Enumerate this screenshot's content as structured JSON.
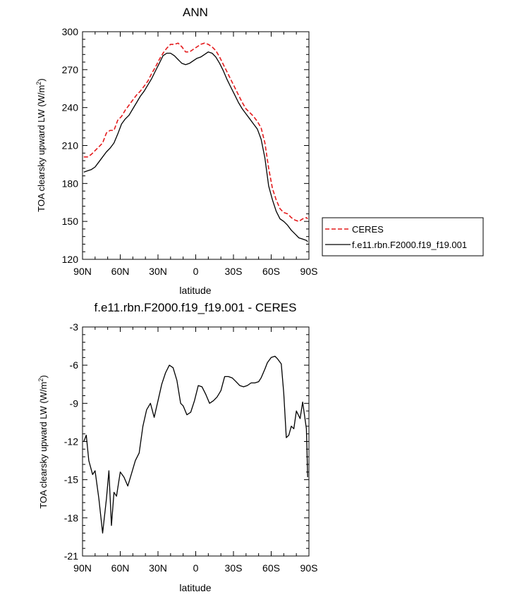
{
  "chart_data": [
    {
      "type": "line",
      "title": "ANN",
      "xlabel": "latitude",
      "ylabel": "TOA clearsky upward LW (W/m",
      "ylabel_sup": "2",
      "ylabel_end": ")",
      "xlim": [
        90,
        -90
      ],
      "ylim": [
        120,
        300
      ],
      "xticks": [
        90,
        60,
        30,
        0,
        -30,
        -60,
        -90
      ],
      "xticklabels": [
        "90N",
        "60N",
        "30N",
        "0",
        "30S",
        "60S",
        "90S"
      ],
      "yticks": [
        120,
        150,
        180,
        210,
        240,
        270,
        300
      ],
      "yticklabels": [
        "120",
        "150",
        "180",
        "210",
        "240",
        "270",
        "300"
      ],
      "legend_position": "right",
      "series": [
        {
          "name": "CERES",
          "color": "#e41a1c",
          "dash": "dashed",
          "x": [
            89,
            86,
            83,
            80,
            77,
            74,
            71,
            68,
            65,
            62,
            59,
            56,
            53,
            50,
            47,
            44,
            41,
            38,
            35,
            32,
            29,
            26,
            23,
            20,
            17,
            14,
            11,
            8,
            5,
            2,
            -1,
            -4,
            -7,
            -10,
            -13,
            -16,
            -19,
            -22,
            -25,
            -28,
            -31,
            -34,
            -37,
            -40,
            -43,
            -46,
            -49,
            -52,
            -55,
            -58,
            -61,
            -64,
            -67,
            -70,
            -73,
            -76,
            -79,
            -82,
            -85,
            -88,
            -89
          ],
          "y": [
            201,
            201,
            203,
            206,
            209,
            212,
            220,
            222,
            222,
            230,
            233,
            238,
            242,
            246,
            250,
            253,
            257,
            261,
            267,
            272,
            278,
            283,
            287,
            290,
            290,
            291,
            288,
            284,
            284,
            286,
            288,
            290,
            291,
            290,
            288,
            285,
            280,
            274,
            268,
            262,
            256,
            250,
            244,
            239,
            236,
            233,
            229,
            224,
            212,
            192,
            176,
            167,
            160,
            157,
            156,
            153,
            151,
            150,
            152,
            153,
            152
          ]
        },
        {
          "name": "f.e11.rbn.F2000.f19_f19.001",
          "color": "#000000",
          "dash": "solid",
          "x": [
            89,
            86,
            83,
            80,
            77,
            74,
            71,
            68,
            65,
            62,
            59,
            56,
            53,
            50,
            47,
            44,
            41,
            38,
            35,
            32,
            29,
            26,
            23,
            20,
            17,
            14,
            11,
            8,
            5,
            2,
            -1,
            -4,
            -7,
            -10,
            -13,
            -16,
            -19,
            -22,
            -25,
            -28,
            -31,
            -34,
            -37,
            -40,
            -43,
            -46,
            -49,
            -52,
            -55,
            -58,
            -61,
            -64,
            -67,
            -70,
            -73,
            -76,
            -79,
            -82,
            -85,
            -88,
            -89
          ],
          "y": [
            189,
            190,
            191,
            193,
            197,
            201,
            205,
            208,
            212,
            219,
            227,
            231,
            234,
            239,
            244,
            249,
            253,
            258,
            263,
            269,
            275,
            281,
            283,
            283,
            281,
            278,
            275,
            274,
            275,
            277,
            279,
            280,
            282,
            284,
            283,
            280,
            275,
            269,
            262,
            256,
            250,
            244,
            239,
            235,
            231,
            227,
            223,
            215,
            200,
            178,
            167,
            158,
            152,
            150,
            147,
            143,
            140,
            137,
            136,
            135,
            134
          ]
        }
      ]
    },
    {
      "type": "line",
      "title": "f.e11.rbn.F2000.f19_f19.001 - CERES",
      "xlabel": "latitude",
      "ylabel": "TOA clearsky upward LW (W/m",
      "ylabel_sup": "2",
      "ylabel_end": ")",
      "xlim": [
        90,
        -90
      ],
      "ylim": [
        -21,
        -3
      ],
      "xticks": [
        90,
        60,
        30,
        0,
        -30,
        -60,
        -90
      ],
      "xticklabels": [
        "90N",
        "60N",
        "30N",
        "0",
        "30S",
        "60S",
        "90S"
      ],
      "yticks": [
        -21,
        -18,
        -15,
        -12,
        -9,
        -6,
        -3
      ],
      "yticklabels": [
        "-21",
        "-18",
        "-15",
        "-12",
        "-9",
        "-6",
        "-3"
      ],
      "series": [
        {
          "name": "",
          "color": "#000000",
          "dash": "solid",
          "x": [
            89,
            87,
            85,
            82,
            80,
            77,
            74,
            71,
            69,
            67,
            65,
            63,
            60,
            57,
            54,
            51,
            48,
            45,
            42,
            39,
            36,
            33,
            30,
            27,
            24,
            21,
            18,
            15,
            12,
            10,
            7,
            4,
            1,
            -2,
            -5,
            -8,
            -11,
            -14,
            -17,
            -20,
            -23,
            -26,
            -29,
            -32,
            -35,
            -38,
            -41,
            -44,
            -47,
            -50,
            -52,
            -55,
            -57,
            -60,
            -63,
            -65,
            -68,
            -70,
            -72,
            -74,
            -76,
            -78,
            -80,
            -83,
            -85,
            -88,
            -89
          ],
          "y": [
            -12.0,
            -11.5,
            -13.5,
            -14.6,
            -14.3,
            -16.5,
            -19.2,
            -16.5,
            -14.3,
            -18.6,
            -16.0,
            -16.3,
            -14.4,
            -14.8,
            -15.5,
            -14.5,
            -13.5,
            -12.9,
            -10.8,
            -9.5,
            -9.0,
            -10.1,
            -8.8,
            -7.5,
            -6.6,
            -6.0,
            -6.2,
            -7.2,
            -9.0,
            -9.2,
            -9.9,
            -9.7,
            -8.8,
            -7.6,
            -7.7,
            -8.3,
            -9.0,
            -8.8,
            -8.5,
            -8.0,
            -6.9,
            -6.9,
            -7.0,
            -7.3,
            -7.6,
            -7.7,
            -7.6,
            -7.4,
            -7.4,
            -7.3,
            -7.0,
            -6.3,
            -5.8,
            -5.4,
            -5.3,
            -5.5,
            -5.9,
            -8.2,
            -11.7,
            -11.5,
            -10.8,
            -11.0,
            -9.6,
            -10.2,
            -8.9,
            -11.0,
            -14.8
          ]
        }
      ]
    }
  ]
}
